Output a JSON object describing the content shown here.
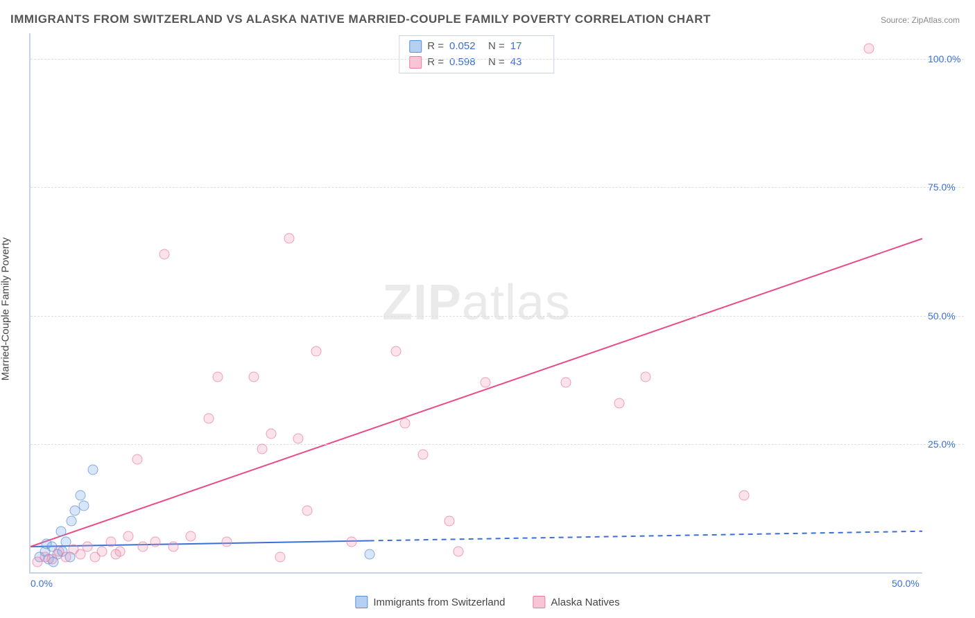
{
  "title": "IMMIGRANTS FROM SWITZERLAND VS ALASKA NATIVE MARRIED-COUPLE FAMILY POVERTY CORRELATION CHART",
  "source": "Source: ZipAtlas.com",
  "ylabel": "Married-Couple Family Poverty",
  "watermark_a": "ZIP",
  "watermark_b": "atlas",
  "axes": {
    "xlim": [
      0,
      50
    ],
    "ylim": [
      0,
      105
    ],
    "xticks": [
      {
        "v": 0,
        "label": "0.0%"
      },
      {
        "v": 50,
        "label": "50.0%"
      }
    ],
    "yticks": [
      {
        "v": 25,
        "label": "25.0%"
      },
      {
        "v": 50,
        "label": "50.0%"
      },
      {
        "v": 75,
        "label": "75.0%"
      },
      {
        "v": 100,
        "label": "100.0%"
      }
    ],
    "grid_color": "#dddddd",
    "border_color": "#c9d3e6"
  },
  "series": [
    {
      "name": "Immigrants from Switzerland",
      "color_fill": "rgba(120,170,230,0.4)",
      "color_stroke": "#5a8dd6",
      "class": "series-blue",
      "R": "0.052",
      "N": "17",
      "trend": {
        "x1": 0,
        "y1": 5,
        "x2": 50,
        "y2": 8,
        "solid_until_x": 19,
        "stroke": "#3b6fd6",
        "width": 2
      },
      "points": [
        {
          "x": 0.5,
          "y": 3
        },
        {
          "x": 0.8,
          "y": 4
        },
        {
          "x": 1.0,
          "y": 2.5
        },
        {
          "x": 1.2,
          "y": 5
        },
        {
          "x": 1.5,
          "y": 3.5
        },
        {
          "x": 1.8,
          "y": 4
        },
        {
          "x": 2.0,
          "y": 6
        },
        {
          "x": 2.3,
          "y": 10
        },
        {
          "x": 2.5,
          "y": 12
        },
        {
          "x": 2.8,
          "y": 15
        },
        {
          "x": 3.0,
          "y": 13
        },
        {
          "x": 3.5,
          "y": 20
        },
        {
          "x": 1.3,
          "y": 2
        },
        {
          "x": 0.9,
          "y": 5.5
        },
        {
          "x": 2.2,
          "y": 3
        },
        {
          "x": 1.7,
          "y": 8
        },
        {
          "x": 19,
          "y": 3.5
        }
      ]
    },
    {
      "name": "Alaska Natives",
      "color_fill": "rgba(240,150,180,0.35)",
      "color_stroke": "#e97ca4",
      "class": "series-pink",
      "R": "0.598",
      "N": "43",
      "trend": {
        "x1": 0,
        "y1": 5,
        "x2": 50,
        "y2": 65,
        "solid_until_x": 50,
        "stroke": "#e94b86",
        "width": 2
      },
      "points": [
        {
          "x": 0.4,
          "y": 2
        },
        {
          "x": 0.8,
          "y": 3
        },
        {
          "x": 1.2,
          "y": 2.5
        },
        {
          "x": 1.6,
          "y": 4
        },
        {
          "x": 2.0,
          "y": 3
        },
        {
          "x": 2.4,
          "y": 4.5
        },
        {
          "x": 2.8,
          "y": 3.5
        },
        {
          "x": 3.2,
          "y": 5
        },
        {
          "x": 3.6,
          "y": 3
        },
        {
          "x": 4.0,
          "y": 4
        },
        {
          "x": 4.5,
          "y": 6
        },
        {
          "x": 5.0,
          "y": 4
        },
        {
          "x": 5.5,
          "y": 7
        },
        {
          "x": 6.0,
          "y": 22
        },
        {
          "x": 7.0,
          "y": 6
        },
        {
          "x": 7.5,
          "y": 62
        },
        {
          "x": 8.0,
          "y": 5
        },
        {
          "x": 10.0,
          "y": 30
        },
        {
          "x": 10.5,
          "y": 38
        },
        {
          "x": 11.0,
          "y": 6
        },
        {
          "x": 12.5,
          "y": 38
        },
        {
          "x": 13.0,
          "y": 24
        },
        {
          "x": 13.5,
          "y": 27
        },
        {
          "x": 14.0,
          "y": 3
        },
        {
          "x": 14.5,
          "y": 65
        },
        {
          "x": 15.0,
          "y": 26
        },
        {
          "x": 15.5,
          "y": 12
        },
        {
          "x": 16.0,
          "y": 43
        },
        {
          "x": 18.0,
          "y": 6
        },
        {
          "x": 20.5,
          "y": 43
        },
        {
          "x": 21.0,
          "y": 29
        },
        {
          "x": 22.0,
          "y": 23
        },
        {
          "x": 23.5,
          "y": 10
        },
        {
          "x": 24.0,
          "y": 4
        },
        {
          "x": 25.5,
          "y": 37
        },
        {
          "x": 30.0,
          "y": 37
        },
        {
          "x": 33.0,
          "y": 33
        },
        {
          "x": 34.5,
          "y": 38
        },
        {
          "x": 40.0,
          "y": 15
        },
        {
          "x": 47.0,
          "y": 102
        },
        {
          "x": 4.8,
          "y": 3.5
        },
        {
          "x": 6.3,
          "y": 5
        },
        {
          "x": 9.0,
          "y": 7
        }
      ]
    }
  ],
  "legend": {
    "series1": "Immigrants from Switzerland",
    "series2": "Alaska Natives"
  },
  "stats_labels": {
    "R": "R =",
    "N": "N ="
  }
}
